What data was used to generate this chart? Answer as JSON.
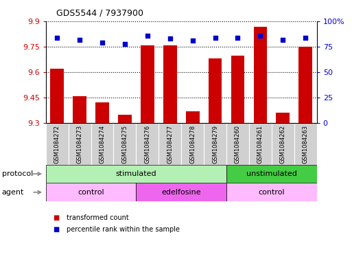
{
  "title": "GDS5544 / 7937900",
  "samples": [
    "GSM1084272",
    "GSM1084273",
    "GSM1084274",
    "GSM1084275",
    "GSM1084276",
    "GSM1084277",
    "GSM1084278",
    "GSM1084279",
    "GSM1084260",
    "GSM1084261",
    "GSM1084262",
    "GSM1084263"
  ],
  "bar_values": [
    9.62,
    9.46,
    9.42,
    9.35,
    9.76,
    9.76,
    9.37,
    9.68,
    9.7,
    9.87,
    9.36,
    9.75
  ],
  "dot_values": [
    84,
    82,
    79,
    78,
    86,
    83,
    81,
    84,
    84,
    86,
    82,
    84
  ],
  "ylim_left": [
    9.3,
    9.9
  ],
  "ylim_right": [
    0,
    100
  ],
  "yticks_left": [
    9.3,
    9.45,
    9.6,
    9.75,
    9.9
  ],
  "yticks_right": [
    0,
    25,
    50,
    75,
    100
  ],
  "bar_color": "#cc0000",
  "dot_color": "#0000cc",
  "protocol_groups": [
    {
      "label": "stimulated",
      "start": 0,
      "end": 8,
      "color": "#b3f0b3"
    },
    {
      "label": "unstimulated",
      "start": 8,
      "end": 12,
      "color": "#44cc44"
    }
  ],
  "agent_groups": [
    {
      "label": "control",
      "start": 0,
      "end": 4,
      "color": "#ffbbff"
    },
    {
      "label": "edelfosine",
      "start": 4,
      "end": 8,
      "color": "#ee66ee"
    },
    {
      "label": "control",
      "start": 8,
      "end": 12,
      "color": "#ffbbff"
    }
  ],
  "legend_bar_label": "transformed count",
  "legend_dot_label": "percentile rank within the sample",
  "ylabel_left_color": "#cc0000",
  "ylabel_right_color": "#0000cc",
  "protocol_label": "protocol",
  "agent_label": "agent",
  "sample_bg_color": "#d0d0d0",
  "arrow_color": "#888888"
}
